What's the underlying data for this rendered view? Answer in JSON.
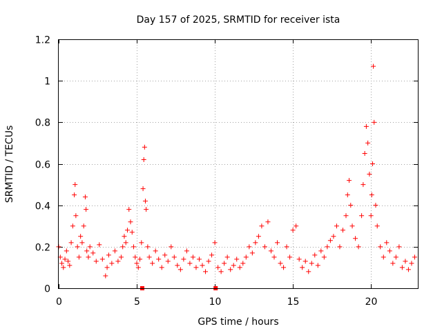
{
  "chart_data": {
    "type": "scatter",
    "title": "Day 157 of 2025, SRMTID for receiver ista",
    "xlabel": "GPS time / hours",
    "ylabel": "SRMTID / TECUs",
    "xlim": [
      0,
      23
    ],
    "ylim": [
      0,
      1.2
    ],
    "xticks": [
      0,
      5,
      10,
      15,
      20
    ],
    "xtick_labels": [
      "0",
      "5",
      "10",
      "15",
      "20"
    ],
    "yticks": [
      0,
      0.2,
      0.4,
      0.6,
      0.8,
      1,
      1.2
    ],
    "ytick_labels": [
      "0",
      "0.2",
      "0.4",
      "0.6",
      "0.8",
      "1",
      "1.2"
    ],
    "grid": true,
    "marker": "plus",
    "square_marker_points": [
      {
        "x": 5.35,
        "y": 0
      },
      {
        "x": 10.05,
        "y": 0
      }
    ],
    "series": [
      {
        "name": "SRMTID",
        "color": "#ff0000",
        "x": [
          0.0,
          0.1,
          0.2,
          0.3,
          0.4,
          0.5,
          0.6,
          0.7,
          0.8,
          0.9,
          1.0,
          1.05,
          1.1,
          1.2,
          1.3,
          1.4,
          1.5,
          1.6,
          1.7,
          1.75,
          1.8,
          1.9,
          2.0,
          2.2,
          2.4,
          2.6,
          2.8,
          3.0,
          3.1,
          3.2,
          3.4,
          3.6,
          3.8,
          4.0,
          4.1,
          4.2,
          4.3,
          4.4,
          4.5,
          4.6,
          4.7,
          4.8,
          4.9,
          5.0,
          5.1,
          5.2,
          5.3,
          5.4,
          5.45,
          5.5,
          5.55,
          5.6,
          5.7,
          5.8,
          6.0,
          6.2,
          6.4,
          6.6,
          6.8,
          7.0,
          7.2,
          7.4,
          7.6,
          7.8,
          8.0,
          8.2,
          8.4,
          8.6,
          8.8,
          9.0,
          9.2,
          9.4,
          9.6,
          9.8,
          10.0,
          10.2,
          10.4,
          10.6,
          10.8,
          11.0,
          11.2,
          11.4,
          11.6,
          11.8,
          12.0,
          12.2,
          12.4,
          12.6,
          12.8,
          13.0,
          13.2,
          13.4,
          13.6,
          13.8,
          14.0,
          14.2,
          14.4,
          14.6,
          14.8,
          15.0,
          15.2,
          15.4,
          15.6,
          15.8,
          16.0,
          16.2,
          16.4,
          16.6,
          16.8,
          17.0,
          17.2,
          17.4,
          17.6,
          17.8,
          18.0,
          18.2,
          18.4,
          18.5,
          18.6,
          18.7,
          18.8,
          19.0,
          19.2,
          19.4,
          19.5,
          19.6,
          19.7,
          19.8,
          19.9,
          20.0,
          20.05,
          20.1,
          20.15,
          20.2,
          20.3,
          20.4,
          20.6,
          20.8,
          21.0,
          21.2,
          21.4,
          21.6,
          21.8,
          22.0,
          22.2,
          22.4,
          22.6,
          22.8
        ],
        "y": [
          0.2,
          0.15,
          0.12,
          0.1,
          0.14,
          0.18,
          0.13,
          0.11,
          0.22,
          0.3,
          0.45,
          0.5,
          0.35,
          0.2,
          0.15,
          0.25,
          0.22,
          0.3,
          0.44,
          0.38,
          0.18,
          0.15,
          0.2,
          0.17,
          0.13,
          0.21,
          0.14,
          0.06,
          0.1,
          0.16,
          0.12,
          0.18,
          0.13,
          0.15,
          0.2,
          0.25,
          0.22,
          0.28,
          0.38,
          0.32,
          0.27,
          0.2,
          0.15,
          0.12,
          0.1,
          0.14,
          0.22,
          0.48,
          0.62,
          0.68,
          0.42,
          0.38,
          0.2,
          0.15,
          0.12,
          0.18,
          0.14,
          0.1,
          0.16,
          0.13,
          0.2,
          0.15,
          0.11,
          0.09,
          0.14,
          0.18,
          0.12,
          0.15,
          0.1,
          0.14,
          0.11,
          0.08,
          0.13,
          0.16,
          0.22,
          0.1,
          0.08,
          0.12,
          0.15,
          0.09,
          0.11,
          0.14,
          0.1,
          0.12,
          0.15,
          0.2,
          0.17,
          0.22,
          0.25,
          0.3,
          0.2,
          0.32,
          0.18,
          0.15,
          0.22,
          0.12,
          0.1,
          0.2,
          0.15,
          0.28,
          0.3,
          0.14,
          0.1,
          0.13,
          0.08,
          0.12,
          0.16,
          0.11,
          0.18,
          0.15,
          0.2,
          0.23,
          0.25,
          0.3,
          0.2,
          0.28,
          0.35,
          0.45,
          0.52,
          0.4,
          0.3,
          0.24,
          0.2,
          0.35,
          0.5,
          0.65,
          0.78,
          0.7,
          0.55,
          0.35,
          0.45,
          0.6,
          1.07,
          0.8,
          0.4,
          0.3,
          0.2,
          0.15,
          0.22,
          0.18,
          0.12,
          0.15,
          0.2,
          0.1,
          0.13,
          0.09,
          0.12,
          0.15
        ]
      }
    ]
  }
}
